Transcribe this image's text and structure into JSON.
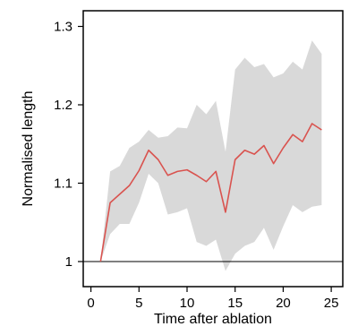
{
  "chart_data": {
    "type": "line",
    "title": "",
    "xlabel": "Time after ablation",
    "ylabel": "Normalised length",
    "xlim": [
      -0.8,
      26.2
    ],
    "ylim": [
      0.968,
      1.32
    ],
    "xticks": [
      0,
      5,
      10,
      15,
      20,
      25
    ],
    "yticks": [
      1,
      1.1,
      1.2,
      1.3
    ],
    "xtick_labels": [
      "0",
      "5",
      "10",
      "15",
      "20",
      "25"
    ],
    "ytick_labels": [
      "1",
      "1.1",
      "1.2",
      "1.3"
    ],
    "reference_line": 1,
    "grid": false,
    "legend": "none",
    "colors": {
      "line": "#d9534f",
      "band": "#d9d9d9",
      "axis": "#000000"
    },
    "x": [
      1,
      2,
      3,
      4,
      5,
      6,
      7,
      8,
      9,
      10,
      11,
      12,
      13,
      14,
      15,
      16,
      17,
      18,
      19,
      20,
      21,
      22,
      23,
      24
    ],
    "series": [
      {
        "values": [
          1.0,
          1.075,
          1.086,
          1.097,
          1.116,
          1.142,
          1.13,
          1.11,
          1.115,
          1.117,
          1.11,
          1.102,
          1.115,
          1.063,
          1.13,
          1.142,
          1.137,
          1.148,
          1.125,
          1.145,
          1.162,
          1.153,
          1.176,
          1.168
        ]
      }
    ],
    "band": {
      "upper": [
        1.0,
        1.115,
        1.122,
        1.145,
        1.153,
        1.168,
        1.158,
        1.16,
        1.171,
        1.17,
        1.2,
        1.188,
        1.205,
        1.14,
        1.245,
        1.26,
        1.248,
        1.252,
        1.235,
        1.24,
        1.255,
        1.245,
        1.282,
        1.265
      ],
      "lower": [
        1.0,
        1.035,
        1.048,
        1.048,
        1.075,
        1.112,
        1.1,
        1.06,
        1.063,
        1.068,
        1.025,
        1.02,
        1.028,
        0.988,
        1.01,
        1.02,
        1.025,
        1.043,
        1.015,
        1.045,
        1.072,
        1.063,
        1.07,
        1.072
      ]
    }
  }
}
